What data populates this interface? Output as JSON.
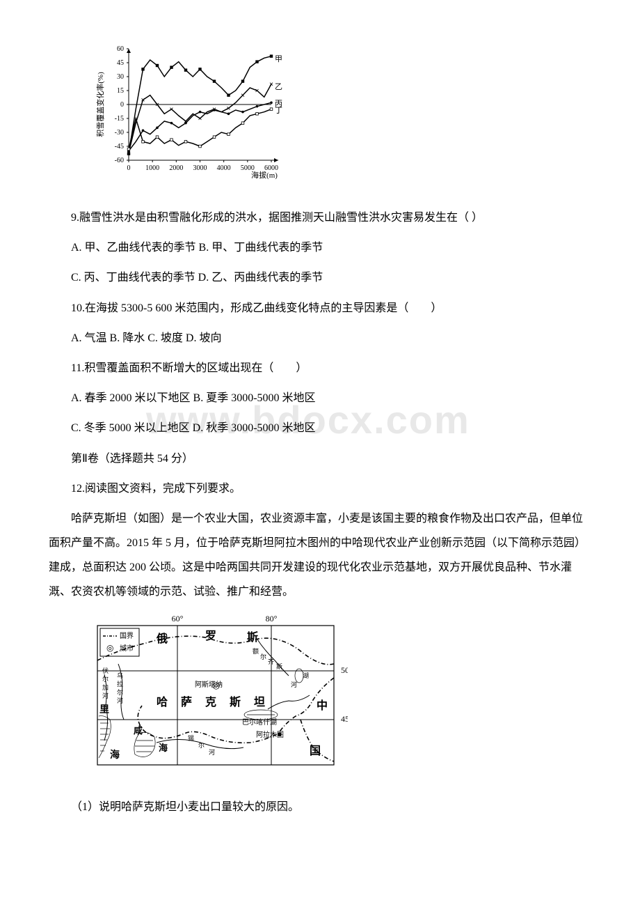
{
  "chart1": {
    "type": "line",
    "y_axis_label": "积雪覆盖变化率(%)",
    "x_axis_label": "海拔(m)",
    "x_range": [
      0,
      6000
    ],
    "y_range": [
      -60,
      60
    ],
    "x_ticks": [
      0,
      1000,
      2000,
      3000,
      4000,
      5000,
      6000
    ],
    "y_ticks": [
      -60,
      -45,
      -30,
      -15,
      0,
      15,
      30,
      45,
      60
    ],
    "line_colors": {
      "jia": "#000000",
      "yi": "#000000",
      "bing": "#000000",
      "ding": "#000000"
    },
    "series_labels": {
      "jia": "甲",
      "yi": "乙",
      "bing": "丙",
      "ding": "丁"
    },
    "background_color": "#ffffff",
    "axis_color": "#000000",
    "line_width": 1.5,
    "series": {
      "jia": [
        [
          0,
          -53
        ],
        [
          300,
          -5
        ],
        [
          600,
          38
        ],
        [
          900,
          48
        ],
        [
          1200,
          42
        ],
        [
          1500,
          30
        ],
        [
          1800,
          40
        ],
        [
          2100,
          46
        ],
        [
          2400,
          37
        ],
        [
          2700,
          30
        ],
        [
          3000,
          38
        ],
        [
          3300,
          30
        ],
        [
          3600,
          25
        ],
        [
          3900,
          18
        ],
        [
          4200,
          10
        ],
        [
          4500,
          15
        ],
        [
          4800,
          25
        ],
        [
          5100,
          40
        ],
        [
          5400,
          46
        ],
        [
          5700,
          50
        ],
        [
          6000,
          52
        ]
      ],
      "yi": [
        [
          0,
          -52
        ],
        [
          300,
          -20
        ],
        [
          600,
          5
        ],
        [
          900,
          10
        ],
        [
          1200,
          0
        ],
        [
          1500,
          -10
        ],
        [
          1800,
          -5
        ],
        [
          2100,
          -12
        ],
        [
          2400,
          -18
        ],
        [
          2700,
          -10
        ],
        [
          3000,
          -15
        ],
        [
          3300,
          -8
        ],
        [
          3600,
          -5
        ],
        [
          3900,
          -8
        ],
        [
          4200,
          -4
        ],
        [
          4500,
          2
        ],
        [
          4800,
          10
        ],
        [
          5100,
          18
        ],
        [
          5400,
          15
        ],
        [
          5700,
          8
        ],
        [
          6000,
          22
        ]
      ],
      "bing": [
        [
          0,
          -50
        ],
        [
          300,
          -40
        ],
        [
          600,
          -28
        ],
        [
          900,
          -32
        ],
        [
          1200,
          -25
        ],
        [
          1500,
          -18
        ],
        [
          1800,
          -20
        ],
        [
          2100,
          -25
        ],
        [
          2400,
          -20
        ],
        [
          2700,
          -12
        ],
        [
          3000,
          -8
        ],
        [
          3300,
          -10
        ],
        [
          3600,
          -6
        ],
        [
          3900,
          -8
        ],
        [
          4200,
          -10
        ],
        [
          4500,
          -6
        ],
        [
          4800,
          -8
        ],
        [
          5100,
          -5
        ],
        [
          5400,
          -2
        ],
        [
          5700,
          0
        ],
        [
          6000,
          2
        ]
      ],
      "ding": [
        [
          0,
          -48
        ],
        [
          300,
          -15
        ],
        [
          600,
          -40
        ],
        [
          900,
          -42
        ],
        [
          1200,
          -35
        ],
        [
          1500,
          -42
        ],
        [
          1800,
          -38
        ],
        [
          2100,
          -44
        ],
        [
          2400,
          -40
        ],
        [
          2700,
          -42
        ],
        [
          3000,
          -45
        ],
        [
          3300,
          -40
        ],
        [
          3600,
          -35
        ],
        [
          3900,
          -30
        ],
        [
          4200,
          -32
        ],
        [
          4500,
          -25
        ],
        [
          4800,
          -20
        ],
        [
          5100,
          -12
        ],
        [
          5400,
          -10
        ],
        [
          5700,
          -8
        ],
        [
          6000,
          -5
        ]
      ]
    }
  },
  "q9": {
    "stem": "9.融雪性洪水是由积雪融化形成的洪水，据图推测天山融雪性洪水灾害易发生在（    ）",
    "a": "A. 甲、乙曲线代表的季节 B. 甲、丁曲线代表的季节",
    "c": "C. 丙、丁曲线代表的季节 D. 乙、丙曲线代表的季节"
  },
  "q10": {
    "stem": "10.在海拔 5300-5 600 米范围内，形成乙曲线变化特点的主导因素是（　　）",
    "opts": "A. 气温 B. 降水 C. 坡度 D. 坡向"
  },
  "q11": {
    "stem": "11.积雪覆盖面积不断增大的区域出现在（　　）",
    "a": "A. 春季 2000 米以下地区 B. 夏季 3000-5000 米地区",
    "c": "C. 冬季 5000 米以上地区 D. 秋季 3000-5000 米地区"
  },
  "section2": "第Ⅱ卷（选择题共 54 分）",
  "q12": {
    "stem": "12.阅读图文资料，完成下列要求。",
    "passage": "哈萨克斯坦（如图）是一个农业大国，农业资源丰富，小麦是该国主要的粮食作物及出口农产品，但单位面积产量不高。2015 年 5 月，位于哈萨克斯坦阿拉木图州的中哈现代农业产业创新示范园（以下简称示范园）建成，总面积达 200 公顷。这是中哈两国共同开发建设的现代化农业示范基地，双方开展优良品种、节水灌溉、农资农机等领域的示范、试验、推广和经营。",
    "sub1": "（1）说明哈萨克斯坦小麦出口量较大的原因。"
  },
  "map": {
    "type": "map",
    "lon_labels": [
      "60°",
      "80°"
    ],
    "lat_labels": [
      "50°",
      "45°"
    ],
    "legend": {
      "border": "国界",
      "city": "城市"
    },
    "country_labels": [
      "俄",
      "罗",
      "斯",
      "哈",
      "萨",
      "克",
      "斯",
      "坦",
      "中",
      "国"
    ],
    "place_labels": [
      "伏尔加河",
      "乌拉尔河",
      "里",
      "海",
      "阿斯塔纳",
      "额尔齐斯河",
      "巴尔喀什湖",
      "阿拉木图",
      "咸",
      "海",
      "湖"
    ],
    "city_marker": "◎",
    "line_color": "#000000",
    "background_color": "#ffffff"
  },
  "watermark": "www.bdocx.com"
}
